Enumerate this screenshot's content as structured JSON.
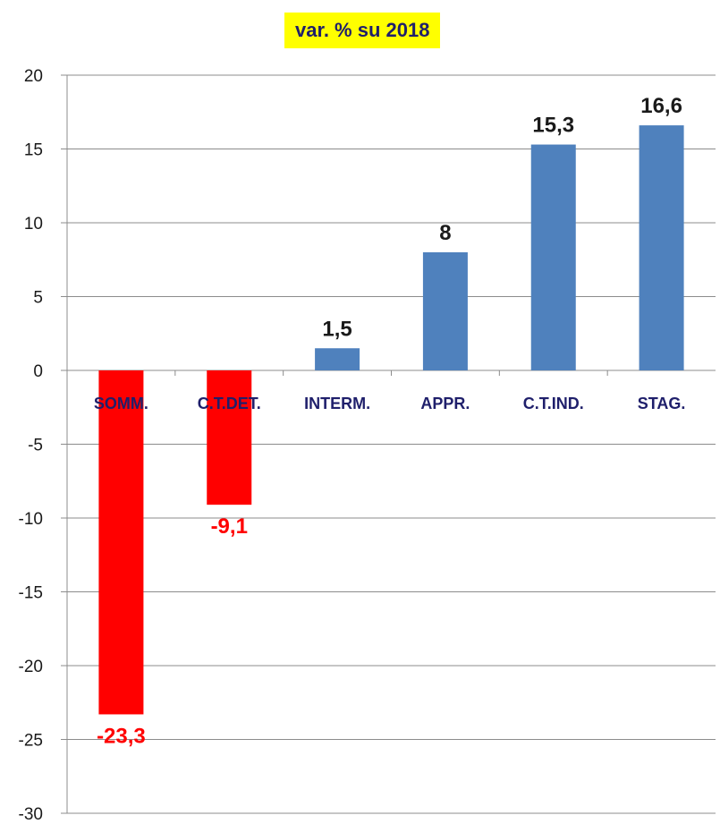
{
  "chart_data": {
    "type": "bar",
    "title": "var. % su 2018",
    "categories": [
      "SOMM.",
      "C.T.DET.",
      "INTERM.",
      "APPR.",
      "C.T.IND.",
      "STAG."
    ],
    "values": [
      -23.3,
      -9.1,
      1.5,
      8,
      15.3,
      16.6
    ],
    "value_labels": [
      "-23,3",
      "-9,1",
      "1,5",
      "8",
      "15,3",
      "16,6"
    ],
    "ylim": [
      -30,
      20
    ],
    "yticks": [
      20,
      15,
      10,
      5,
      0,
      -5,
      -10,
      -15,
      -20,
      -25,
      -30
    ],
    "grid": true,
    "colors": {
      "positive": "#4f81bd",
      "negative": "#ff0000",
      "category_label": "#1f1f6b",
      "positive_label": "#1a1a1a",
      "negative_label": "#ff0000",
      "title_bg": "#ffff00"
    }
  }
}
